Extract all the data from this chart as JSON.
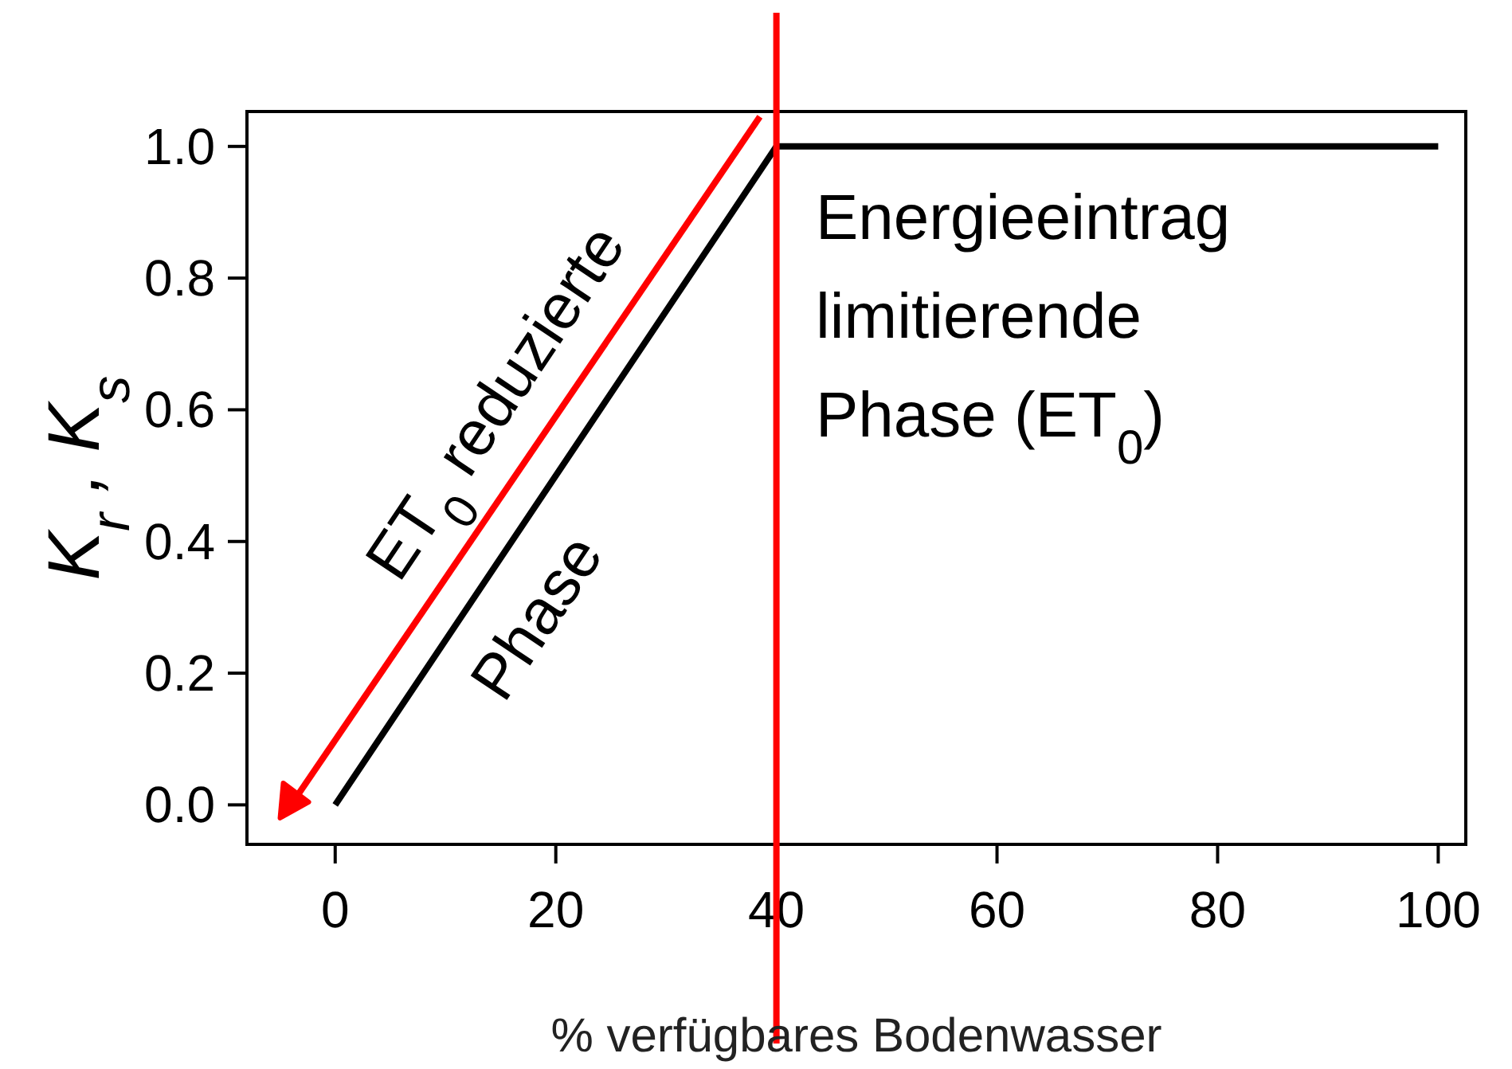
{
  "chart_data": {
    "type": "line",
    "xlabel": "% verfügbares Bodenwasser",
    "ylabel": "K$_{r}$ ,  K$_{s}$",
    "x": [
      0,
      40,
      100
    ],
    "series": [
      {
        "color": "#000000",
        "values": [
          0,
          1,
          1
        ]
      }
    ],
    "xlim": [
      -8,
      102.5
    ],
    "ylim": [
      -0.06,
      1.053
    ],
    "xticks": [
      0,
      20,
      40,
      60,
      80,
      100
    ],
    "yticks": [
      {
        "value": 0,
        "label": "0.0"
      },
      {
        "value": 0.2,
        "label": "0.2"
      },
      {
        "value": 0.4,
        "label": "0.4"
      },
      {
        "value": 0.6,
        "label": "0.6"
      },
      {
        "value": 0.8,
        "label": "0.8"
      },
      {
        "value": 1,
        "label": "1.0"
      }
    ],
    "grid": false,
    "marker": "none",
    "line_style": "solid",
    "ref_lines": [
      {
        "axis": "x",
        "value": 40,
        "color": "#ff0000"
      }
    ],
    "annotations": [
      "ET$_{0}$ reduzierte\nPhase",
      "Energieeintrag\nlimitierende\nPhase (ET$_{0}$)"
    ]
  }
}
